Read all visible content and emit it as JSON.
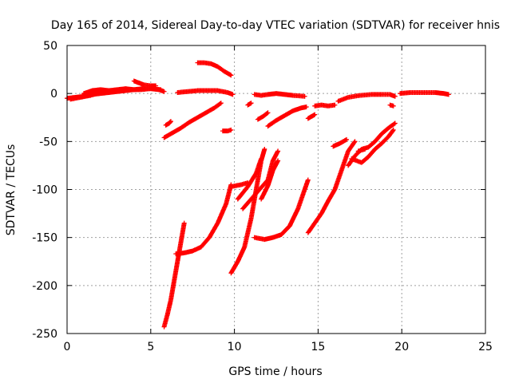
{
  "chart_data": {
    "type": "scatter",
    "title": "Day 165 of 2014, Sidereal Day-to-day VTEC variation (SDTVAR) for receiver hnis",
    "xlabel": "GPS time / hours",
    "ylabel": "SDTVAR / TECUs",
    "xlim": [
      0,
      25
    ],
    "ylim": [
      -250,
      50
    ],
    "x_ticks": [
      0,
      5,
      10,
      15,
      20,
      25
    ],
    "y_ticks": [
      -250,
      -200,
      -150,
      -100,
      -50,
      0,
      50
    ],
    "x_tick_labels": [
      "0",
      "5",
      "10",
      "15",
      "20",
      "25"
    ],
    "y_tick_labels": [
      "-250",
      "-200",
      "-150",
      "-100",
      "-50",
      "0",
      "50"
    ],
    "grid": true,
    "marker": "+",
    "color": "#ff0000",
    "series": [
      {
        "values": [
          [
            0.0,
            -5
          ],
          [
            0.5,
            -4
          ],
          [
            1.0,
            -3
          ],
          [
            1.5,
            -1
          ],
          [
            2.0,
            0
          ],
          [
            2.5,
            1
          ],
          [
            3.0,
            2
          ],
          [
            3.5,
            3
          ],
          [
            4.0,
            4
          ],
          [
            4.5,
            5
          ],
          [
            5.0,
            5
          ],
          [
            5.5,
            4
          ],
          [
            5.8,
            2
          ]
        ]
      },
      {
        "values": [
          [
            0.2,
            -6
          ],
          [
            0.8,
            -4
          ],
          [
            1.4,
            -2
          ],
          [
            2.0,
            1
          ],
          [
            2.6,
            2
          ],
          [
            3.2,
            3
          ],
          [
            3.8,
            4
          ],
          [
            4.4,
            4
          ],
          [
            5.0,
            5
          ],
          [
            5.6,
            4
          ]
        ]
      },
      {
        "values": [
          [
            1.0,
            0
          ],
          [
            1.5,
            3
          ],
          [
            2.0,
            4
          ],
          [
            2.5,
            3
          ],
          [
            3.0,
            4
          ],
          [
            3.5,
            5
          ],
          [
            4.0,
            4
          ]
        ]
      },
      {
        "values": [
          [
            4.0,
            13
          ],
          [
            4.3,
            11
          ],
          [
            4.6,
            9
          ],
          [
            5.0,
            8
          ],
          [
            5.3,
            8
          ]
        ]
      },
      {
        "values": [
          [
            7.8,
            32
          ],
          [
            8.2,
            32
          ],
          [
            8.6,
            31
          ],
          [
            9.0,
            28
          ],
          [
            9.4,
            23
          ],
          [
            9.8,
            19
          ]
        ]
      },
      {
        "values": [
          [
            6.6,
            1
          ],
          [
            7.2,
            2
          ],
          [
            7.8,
            3
          ],
          [
            8.4,
            3
          ],
          [
            9.0,
            3
          ],
          [
            9.6,
            1
          ],
          [
            9.9,
            -1
          ]
        ]
      },
      {
        "values": [
          [
            5.8,
            -46
          ],
          [
            6.3,
            -41
          ],
          [
            6.8,
            -36
          ],
          [
            7.3,
            -30
          ],
          [
            7.8,
            -25
          ],
          [
            8.3,
            -20
          ],
          [
            8.8,
            -15
          ],
          [
            9.2,
            -10
          ]
        ]
      },
      {
        "values": [
          [
            5.9,
            -33
          ],
          [
            6.1,
            -31
          ],
          [
            6.2,
            -29
          ]
        ]
      },
      {
        "values": [
          [
            9.3,
            -39
          ],
          [
            9.6,
            -39
          ],
          [
            9.8,
            -38
          ]
        ]
      },
      {
        "values": [
          [
            11.2,
            -1
          ],
          [
            11.6,
            -2
          ],
          [
            12.0,
            -1
          ],
          [
            12.5,
            0
          ],
          [
            13.0,
            -1
          ],
          [
            13.5,
            -2
          ],
          [
            14.2,
            -3
          ]
        ]
      },
      {
        "values": [
          [
            10.8,
            -12
          ],
          [
            11.0,
            -10
          ]
        ]
      },
      {
        "values": [
          [
            11.4,
            -27
          ],
          [
            11.7,
            -24
          ],
          [
            12.0,
            -20
          ]
        ]
      },
      {
        "values": [
          [
            12.0,
            -34
          ],
          [
            12.5,
            -28
          ],
          [
            13.0,
            -23
          ],
          [
            13.5,
            -18
          ],
          [
            14.0,
            -15
          ],
          [
            14.3,
            -14
          ]
        ]
      },
      {
        "values": [
          [
            14.4,
            -26
          ],
          [
            14.6,
            -24
          ],
          [
            14.8,
            -22
          ]
        ]
      },
      {
        "values": [
          [
            14.8,
            -13
          ],
          [
            15.2,
            -12
          ],
          [
            15.6,
            -13
          ],
          [
            16.0,
            -12
          ]
        ]
      },
      {
        "values": [
          [
            16.2,
            -8
          ],
          [
            16.8,
            -4
          ],
          [
            17.5,
            -2
          ],
          [
            18.2,
            -1
          ],
          [
            18.8,
            -1
          ],
          [
            19.3,
            -1
          ],
          [
            19.6,
            -3
          ]
        ]
      },
      {
        "values": [
          [
            19.3,
            -12
          ],
          [
            19.5,
            -13
          ]
        ]
      },
      {
        "values": [
          [
            19.9,
            0
          ],
          [
            20.5,
            1
          ],
          [
            21.0,
            1
          ],
          [
            21.5,
            1
          ],
          [
            22.0,
            1
          ],
          [
            22.5,
            0
          ],
          [
            22.8,
            -1
          ]
        ]
      },
      {
        "values": [
          [
            5.8,
            -243
          ],
          [
            6.0,
            -230
          ],
          [
            6.2,
            -215
          ],
          [
            6.4,
            -195
          ],
          [
            6.6,
            -175
          ],
          [
            6.8,
            -155
          ],
          [
            7.0,
            -135
          ]
        ]
      },
      {
        "values": [
          [
            6.5,
            -167
          ],
          [
            7.0,
            -166
          ],
          [
            7.5,
            -164
          ],
          [
            8.0,
            -160
          ],
          [
            8.5,
            -150
          ],
          [
            9.0,
            -135
          ],
          [
            9.5,
            -115
          ],
          [
            9.8,
            -95
          ]
        ]
      },
      {
        "values": [
          [
            9.8,
            -187
          ],
          [
            10.2,
            -175
          ],
          [
            10.6,
            -160
          ],
          [
            11.0,
            -130
          ],
          [
            11.3,
            -100
          ],
          [
            11.6,
            -70
          ],
          [
            11.8,
            -58
          ]
        ]
      },
      {
        "values": [
          [
            9.8,
            -97
          ],
          [
            10.4,
            -95
          ],
          [
            10.8,
            -93
          ]
        ]
      },
      {
        "values": [
          [
            10.2,
            -110
          ],
          [
            10.8,
            -97
          ],
          [
            11.3,
            -83
          ],
          [
            11.6,
            -68
          ]
        ]
      },
      {
        "values": [
          [
            10.5,
            -120
          ],
          [
            11.0,
            -110
          ],
          [
            11.5,
            -100
          ],
          [
            12.0,
            -90
          ],
          [
            12.3,
            -70
          ],
          [
            12.6,
            -60
          ]
        ]
      },
      {
        "values": [
          [
            11.2,
            -150
          ],
          [
            11.8,
            -152
          ],
          [
            12.3,
            -150
          ],
          [
            12.8,
            -147
          ],
          [
            13.3,
            -138
          ],
          [
            13.8,
            -120
          ],
          [
            14.2,
            -100
          ],
          [
            14.4,
            -90
          ]
        ]
      },
      {
        "values": [
          [
            11.6,
            -110
          ],
          [
            12.0,
            -96
          ],
          [
            12.3,
            -80
          ],
          [
            12.6,
            -70
          ]
        ]
      },
      {
        "values": [
          [
            14.4,
            -145
          ],
          [
            14.8,
            -135
          ],
          [
            15.2,
            -125
          ],
          [
            15.6,
            -112
          ],
          [
            16.0,
            -100
          ],
          [
            16.4,
            -80
          ],
          [
            16.8,
            -60
          ],
          [
            17.2,
            -50
          ]
        ]
      },
      {
        "values": [
          [
            15.9,
            -55
          ],
          [
            16.3,
            -52
          ],
          [
            16.7,
            -48
          ]
        ]
      },
      {
        "values": [
          [
            16.8,
            -75
          ],
          [
            17.2,
            -65
          ],
          [
            17.6,
            -58
          ],
          [
            18.0,
            -56
          ],
          [
            18.4,
            -50
          ],
          [
            18.8,
            -42
          ],
          [
            19.2,
            -36
          ],
          [
            19.6,
            -31
          ]
        ]
      },
      {
        "values": [
          [
            17.0,
            -68
          ],
          [
            17.6,
            -72
          ],
          [
            18.0,
            -66
          ],
          [
            18.4,
            -58
          ],
          [
            18.8,
            -52
          ],
          [
            19.2,
            -45
          ],
          [
            19.5,
            -38
          ]
        ]
      },
      {
        "values": [
          [
            17.4,
            -60
          ],
          [
            17.8,
            -58
          ]
        ]
      }
    ]
  }
}
